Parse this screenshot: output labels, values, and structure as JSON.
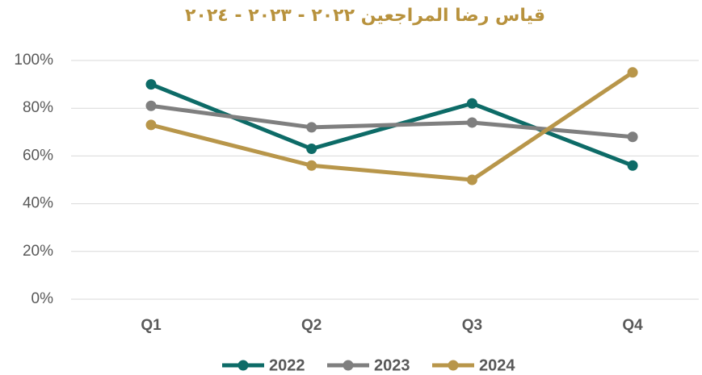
{
  "chart_data": {
    "type": "line",
    "title": "قياس رضا المراجعين ٢٠٢٢ - ٢٠٢٣ - ٢٠٢٤",
    "categories": [
      "Q1",
      "Q2",
      "Q3",
      "Q4"
    ],
    "series": [
      {
        "name": "2022",
        "color": "#0d6b67",
        "values": [
          90,
          63,
          82,
          56
        ]
      },
      {
        "name": "2023",
        "color": "#7f7f7f",
        "values": [
          81,
          72,
          74,
          68
        ]
      },
      {
        "name": "2024",
        "color": "#b8964a",
        "values": [
          73,
          56,
          50,
          95
        ]
      }
    ],
    "ylim": [
      0,
      100
    ],
    "yticks": [
      {
        "value": 0,
        "label": "0%"
      },
      {
        "value": 20,
        "label": "20%"
      },
      {
        "value": 40,
        "label": "40%"
      },
      {
        "value": 60,
        "label": "60%"
      },
      {
        "value": 80,
        "label": "80%"
      },
      {
        "value": 100,
        "label": "100%"
      }
    ],
    "grid": true,
    "legend": "bottom"
  }
}
